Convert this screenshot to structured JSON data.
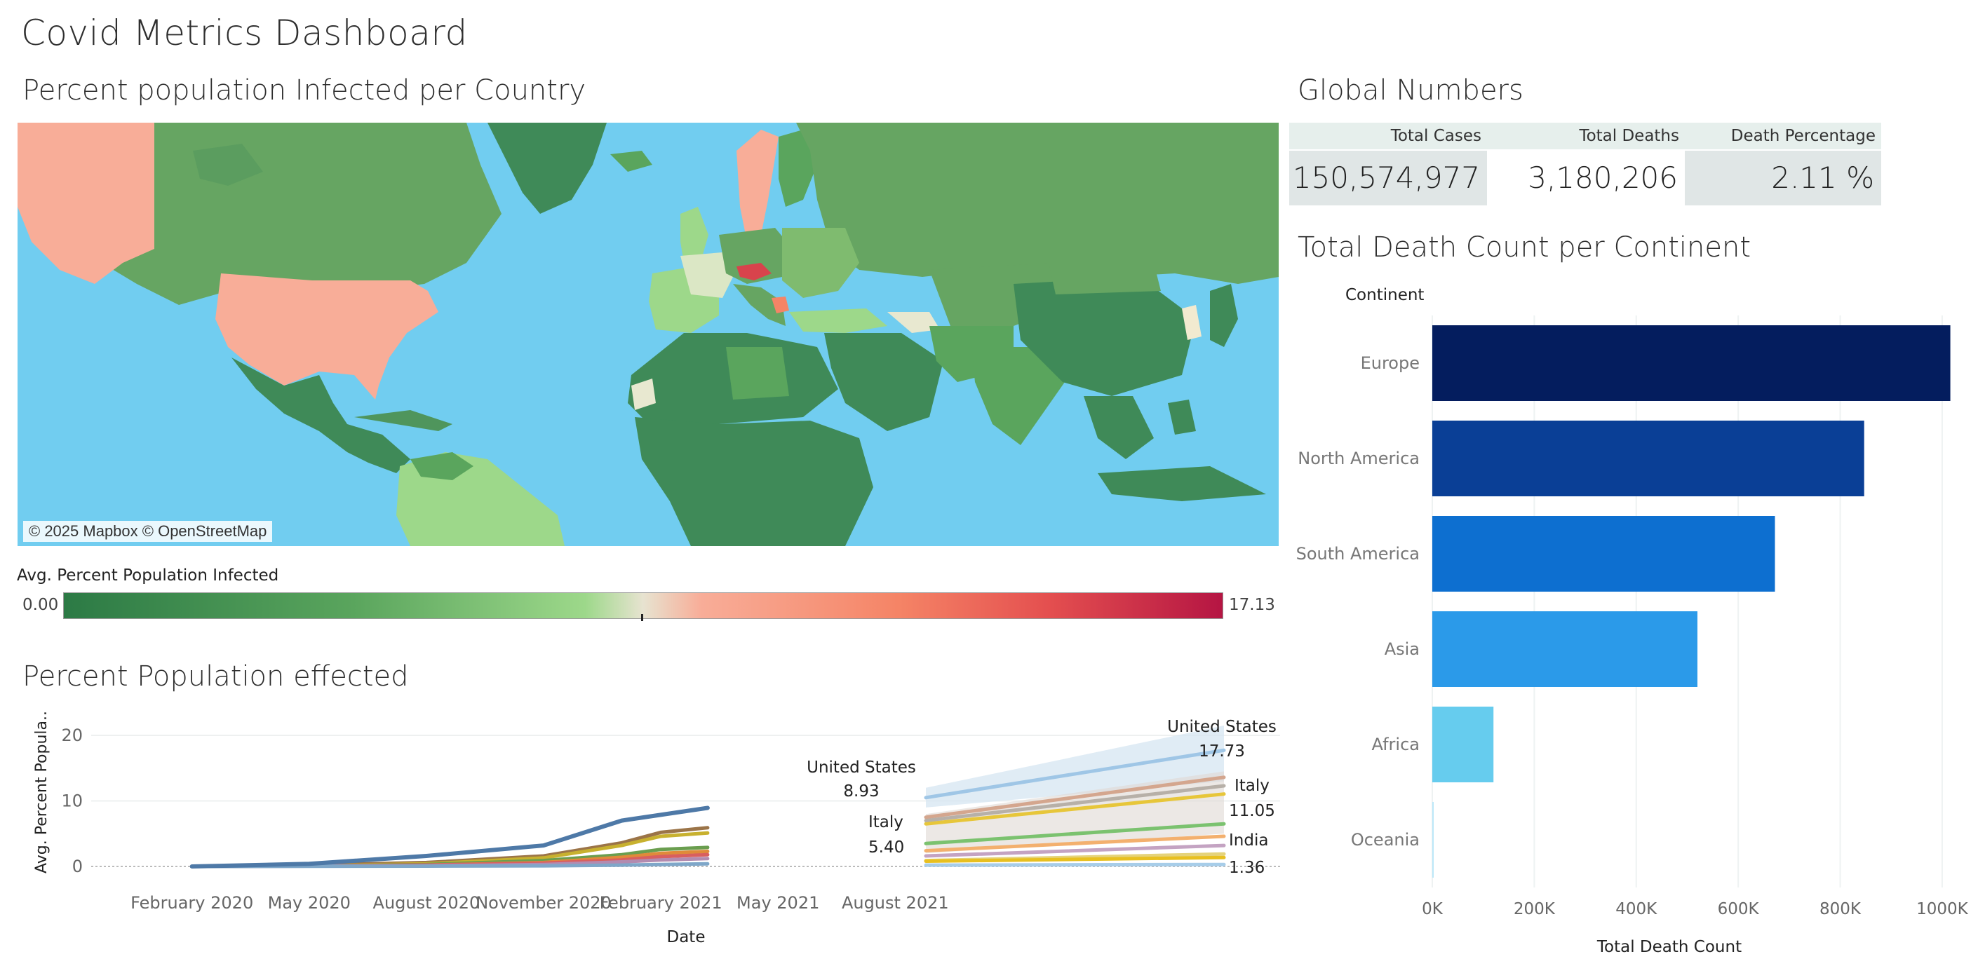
{
  "dashboard": {
    "title": "Covid Metrics Dashboard"
  },
  "map_section": {
    "title": "Percent population Infected per Country",
    "attribution": "© 2025 Mapbox © OpenStreetMap",
    "legend": {
      "title": "Avg. Percent Population Infected",
      "min_label": "0.00",
      "max_label": "17.13",
      "range": [
        0.0,
        17.13
      ],
      "colors": [
        "#2c7a45",
        "#9dd88a",
        "#e7e3d0",
        "#f8ad98",
        "#b51543"
      ]
    },
    "ocean_color": "#71cdf0"
  },
  "global_numbers": {
    "title": "Global Numbers",
    "headers": [
      "Total Cases",
      "Total Deaths",
      "Death Percentage"
    ],
    "values": [
      "150,574,977",
      "3,180,206",
      "2.11 %"
    ]
  },
  "chart_data": [
    {
      "type": "line",
      "title": "Percent Population effected",
      "xlabel": "Date",
      "ylabel": "Avg. Percent Popula..",
      "x_ticks": [
        "February 2020",
        "May 2020",
        "August 2020",
        "November 2020",
        "February 2021",
        "May 2021",
        "August 2021"
      ],
      "y_ticks": [
        "0",
        "10",
        "20"
      ],
      "ylim": [
        0,
        23
      ],
      "grid": true,
      "series": [
        {
          "name": "United States",
          "x": [
            "2020-02",
            "2020-05",
            "2020-08",
            "2020-11",
            "2021-01",
            "2021-04"
          ],
          "values": [
            0.0,
            0.4,
            1.6,
            3.2,
            7.0,
            8.93
          ]
        },
        {
          "name": "Italy",
          "x": [
            "2020-02",
            "2020-05",
            "2020-08",
            "2020-11",
            "2021-01",
            "2021-04"
          ],
          "values": [
            0.0,
            0.2,
            0.5,
            1.7,
            3.8,
            5.4
          ]
        }
      ],
      "forecast": [
        {
          "name": "United States",
          "values": [
            10.5,
            17.73
          ]
        },
        {
          "name": "Italy",
          "values": [
            6.5,
            11.05
          ]
        },
        {
          "name": "India",
          "values": [
            0.8,
            1.36
          ]
        }
      ],
      "labels": [
        {
          "name": "United States",
          "value": "8.93"
        },
        {
          "name": "Italy",
          "value": "5.40"
        },
        {
          "name": "United States",
          "value": "17.73"
        },
        {
          "name": "Italy",
          "value": "11.05"
        },
        {
          "name": "India",
          "value": "1.36"
        }
      ]
    },
    {
      "type": "bar",
      "orientation": "horizontal",
      "title": "Total Death Count per Continent",
      "category_header": "Continent",
      "xlabel": "Total Death Count",
      "categories": [
        "Europe",
        "North America",
        "South America",
        "Asia",
        "Africa",
        "Oceania"
      ],
      "values": [
        1016000,
        847000,
        672000,
        520000,
        120000,
        1000
      ],
      "colors": [
        "#041d5e",
        "#0a3f96",
        "#0d6fd0",
        "#2b9ae9",
        "#66ccee",
        "#bde8f8"
      ],
      "x_ticks": [
        "0K",
        "200K",
        "400K",
        "600K",
        "800K",
        "1000K"
      ],
      "xlim": [
        0,
        1040000
      ]
    }
  ]
}
